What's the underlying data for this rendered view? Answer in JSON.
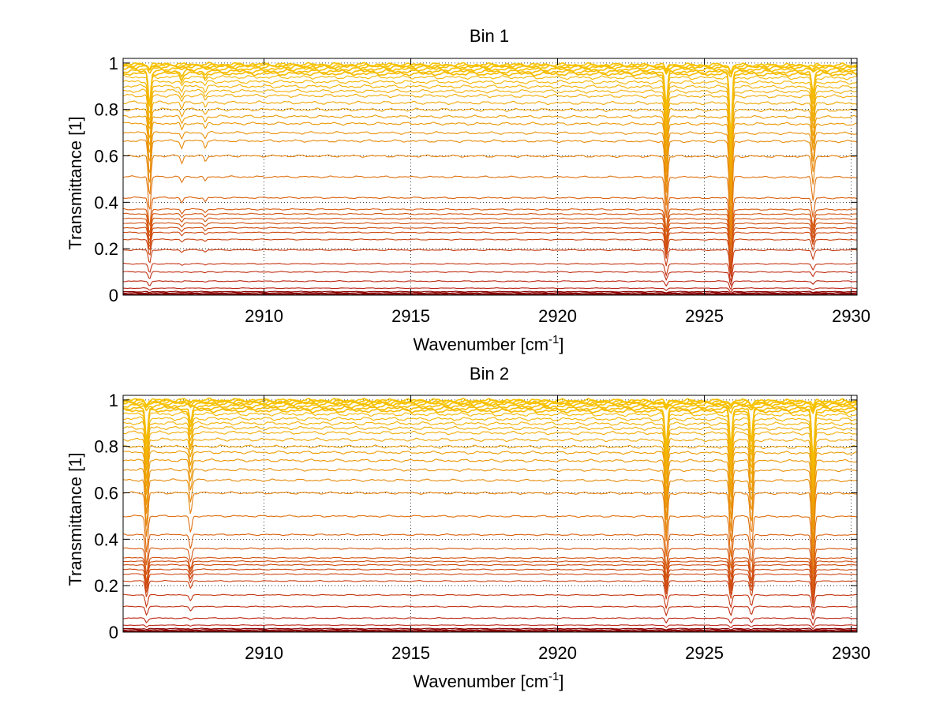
{
  "chart_data": [
    {
      "type": "line",
      "title": "Bin 1",
      "xlabel": "Wavenumber [cm",
      "xlabel_sup": "-1",
      "xlabel_end": "]",
      "ylabel": "Transmittance [1]",
      "xlim": [
        2905.2,
        2930.2
      ],
      "ylim": [
        0,
        1.02
      ],
      "xticks": [
        2910,
        2915,
        2920,
        2925,
        2930
      ],
      "xtick_labels": [
        "2910",
        "2915",
        "2920",
        "2925",
        "2930"
      ],
      "yticks": [
        0,
        0.2,
        0.4,
        0.6,
        0.8,
        1
      ],
      "ytick_labels": [
        "0",
        "0.2",
        "0.4",
        "0.6",
        "0.8",
        "1"
      ],
      "grid": true,
      "series_count": 36,
      "baseline_levels": [
        0.003,
        0.006,
        0.01,
        0.015,
        0.03,
        0.06,
        0.1,
        0.135,
        0.195,
        0.24,
        0.27,
        0.29,
        0.31,
        0.33,
        0.35,
        0.37,
        0.42,
        0.51,
        0.6,
        0.665,
        0.7,
        0.74,
        0.77,
        0.8,
        0.83,
        0.86,
        0.88,
        0.9,
        0.92,
        0.94,
        0.955,
        0.965,
        0.975,
        0.985,
        0.99,
        0.995
      ],
      "absorption_lines": [
        {
          "center": 2906.1,
          "relative_depth": 0.3
        },
        {
          "center": 2907.2,
          "relative_depth": 0.05
        },
        {
          "center": 2908.0,
          "relative_depth": 0.04
        },
        {
          "center": 2923.7,
          "relative_depth": 0.35
        },
        {
          "center": 2925.9,
          "relative_depth": 0.6
        },
        {
          "center": 2928.7,
          "relative_depth": 0.2
        }
      ]
    },
    {
      "type": "line",
      "title": "Bin 2",
      "xlabel": "Wavenumber [cm",
      "xlabel_sup": "-1",
      "xlabel_end": "]",
      "ylabel": "Transmittance [1]",
      "xlim": [
        2905.2,
        2930.2
      ],
      "ylim": [
        0,
        1.02
      ],
      "xticks": [
        2910,
        2915,
        2920,
        2925,
        2930
      ],
      "xtick_labels": [
        "2910",
        "2915",
        "2920",
        "2925",
        "2930"
      ],
      "yticks": [
        0,
        0.2,
        0.4,
        0.6,
        0.8,
        1
      ],
      "ytick_labels": [
        "0",
        "0.2",
        "0.4",
        "0.6",
        "0.8",
        "1"
      ],
      "grid": true,
      "series_count": 36,
      "baseline_levels": [
        0.003,
        0.006,
        0.01,
        0.015,
        0.03,
        0.06,
        0.11,
        0.16,
        0.22,
        0.25,
        0.27,
        0.29,
        0.305,
        0.32,
        0.36,
        0.42,
        0.5,
        0.6,
        0.655,
        0.7,
        0.74,
        0.775,
        0.8,
        0.83,
        0.86,
        0.88,
        0.9,
        0.92,
        0.94,
        0.955,
        0.965,
        0.975,
        0.985,
        0.99,
        0.995,
        1.0
      ],
      "absorption_lines": [
        {
          "center": 2906.0,
          "relative_depth": 0.32
        },
        {
          "center": 2907.5,
          "relative_depth": 0.15
        },
        {
          "center": 2923.7,
          "relative_depth": 0.35
        },
        {
          "center": 2925.9,
          "relative_depth": 0.35
        },
        {
          "center": 2926.6,
          "relative_depth": 0.3
        },
        {
          "center": 2928.7,
          "relative_depth": 0.5
        }
      ]
    }
  ],
  "colors": {
    "high_transmittance": "#f7c300",
    "mid_transmittance": "#e07010",
    "low_transmittance": "#b81e14",
    "zero_transmittance": "#8b0000",
    "grid": "#000000",
    "axes": "#000000"
  }
}
